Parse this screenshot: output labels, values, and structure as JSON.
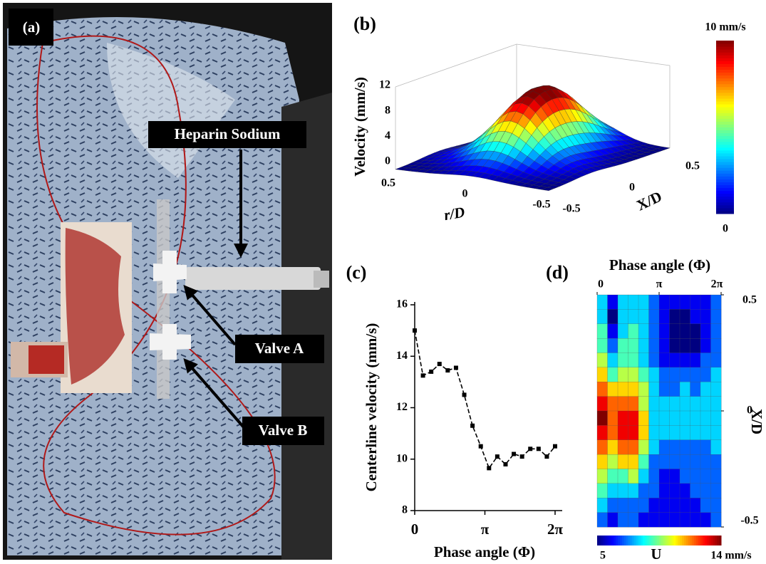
{
  "panel_a": {
    "label": "(a)",
    "annotations": [
      "Heparin Sodium",
      "Valve A",
      "Valve B"
    ]
  },
  "panel_b": {
    "label": "(b)",
    "zlabel": "Velocity (mm/s)",
    "zticks": [
      0,
      4,
      8,
      12
    ],
    "rlabel": "r/D",
    "rticks": [
      0.5,
      0,
      -0.5
    ],
    "xlabel": "X/D",
    "xticks": [
      -0.5,
      0,
      0.5
    ],
    "colorbar": {
      "clim": [
        0,
        10
      ],
      "ticks": [
        0,
        {
          "value": 10,
          "label": "10 mm/s"
        }
      ]
    }
  },
  "chart_data": [
    {
      "type": "line",
      "panel_label": "(c)",
      "xlabel": "Phase angle (Φ)",
      "ylabel": "Centerline velocity (mm/s)",
      "x": [
        0,
        0.37,
        0.739,
        1.109,
        1.478,
        1.848,
        2.218,
        2.587,
        2.957,
        3.326,
        3.696,
        4.066,
        4.435,
        4.805,
        5.174,
        5.544,
        5.914,
        6.283
      ],
      "values": [
        15.0,
        13.25,
        13.4,
        13.7,
        13.45,
        13.55,
        12.5,
        11.3,
        10.5,
        9.65,
        10.1,
        9.8,
        10.2,
        10.1,
        10.4,
        10.4,
        10.1,
        10.5
      ],
      "color": "#000000",
      "xlim": [
        0,
        6.2832
      ],
      "xticks": [
        0,
        {
          "value": 3.1416,
          "label": "π"
        },
        {
          "value": 6.2832,
          "label": "2π"
        }
      ],
      "ylim": [
        8,
        16
      ],
      "yticks": [
        8,
        10,
        12,
        14,
        16
      ]
    },
    {
      "type": "heatmap",
      "panel_label": "(d)",
      "xlabel": "Phase angle (Φ)",
      "ylabel": "X/D",
      "xlim": [
        0,
        6.2832
      ],
      "xticks": [
        0,
        {
          "value": 3.1416,
          "label": "π"
        },
        {
          "value": 6.2832,
          "label": "2π"
        }
      ],
      "ylim": [
        -0.5,
        0.5
      ],
      "yticks": [
        0.5,
        0,
        -0.5
      ],
      "zlim": [
        5,
        14
      ],
      "colorbar": {
        "label": "U",
        "ticks": [
          5,
          {
            "value": 14,
            "label": "14 mm/s"
          }
        ]
      },
      "z": [
        [
          8,
          6,
          8,
          8,
          8,
          7,
          6,
          6,
          6,
          6,
          6,
          7
        ],
        [
          8,
          5,
          8,
          8,
          8,
          7,
          6,
          5,
          5,
          6,
          6,
          7
        ],
        [
          9,
          6,
          8,
          9,
          8,
          7,
          6,
          5,
          5,
          5,
          6,
          7
        ],
        [
          9,
          7,
          9,
          9,
          8,
          7,
          6,
          5,
          5,
          5,
          6,
          7
        ],
        [
          10,
          8,
          9,
          9,
          8,
          7,
          6,
          6,
          6,
          6,
          7,
          7
        ],
        [
          11,
          9,
          10,
          10,
          9,
          8,
          7,
          7,
          7,
          7,
          7,
          8
        ],
        [
          12,
          11,
          11,
          11,
          10,
          8,
          7,
          7,
          8,
          7,
          8,
          8
        ],
        [
          13,
          12,
          12,
          12,
          10,
          8,
          8,
          8,
          8,
          8,
          8,
          8
        ],
        [
          14,
          12,
          13,
          13,
          11,
          8,
          8,
          8,
          8,
          8,
          8,
          8
        ],
        [
          13,
          12,
          13,
          13,
          11,
          8,
          8,
          8,
          8,
          8,
          8,
          8
        ],
        [
          12,
          11,
          12,
          12,
          10,
          8,
          7,
          7,
          7,
          7,
          7,
          8
        ],
        [
          11,
          10,
          11,
          11,
          9,
          7,
          7,
          7,
          7,
          7,
          7,
          7
        ],
        [
          10,
          9,
          9,
          10,
          8,
          7,
          6,
          6,
          7,
          7,
          7,
          7
        ],
        [
          9,
          8,
          8,
          8,
          7,
          7,
          6,
          6,
          6,
          7,
          7,
          7
        ],
        [
          8,
          7,
          7,
          7,
          7,
          6,
          6,
          6,
          6,
          6,
          7,
          7
        ],
        [
          7,
          6,
          7,
          7,
          6,
          6,
          6,
          6,
          6,
          6,
          6,
          7
        ]
      ]
    }
  ]
}
